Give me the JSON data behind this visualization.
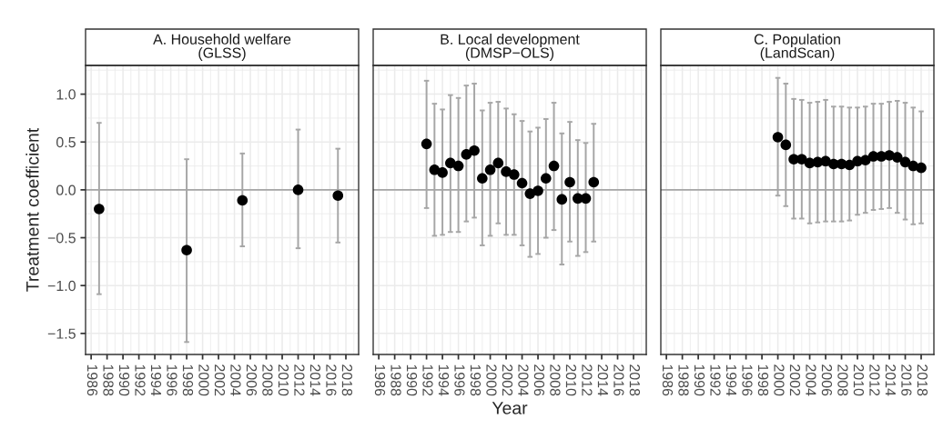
{
  "chart_data": [
    {
      "type": "scatter",
      "title": "A. Household welfare\n(GLSS)",
      "ylabel": "Treatment coefficient",
      "xlim": [
        1985.3,
        2019.6
      ],
      "xticks": [
        1986,
        1988,
        1990,
        1992,
        1994,
        1996,
        1998,
        2000,
        2002,
        2004,
        2006,
        2008,
        2010,
        2012,
        2014,
        2016,
        2018
      ],
      "ylim": [
        -1.72,
        1.3
      ],
      "yticks": [
        -1.5,
        {
          "value": -1,
          "label": "−1.0"
        },
        -0.5,
        {
          "value": 0,
          "label": "0.0"
        },
        0.5,
        {
          "value": 1,
          "label": "1.0"
        }
      ],
      "grid": true,
      "marker": "circle",
      "x": [
        1987,
        1998,
        2005,
        2012,
        2017
      ],
      "series": [
        {
          "color": "#000000",
          "values": [
            -0.2,
            -0.63,
            -0.11,
            0.0,
            -0.06
          ],
          "errors": [
            [
              -1.09,
              0.7
            ],
            [
              -1.59,
              0.32
            ],
            [
              -0.59,
              0.38
            ],
            [
              -0.61,
              0.63
            ],
            [
              -0.55,
              0.43
            ]
          ]
        }
      ],
      "ref_lines": [
        {
          "axis": "y",
          "value": 0,
          "color": "#a6a6a6"
        }
      ]
    },
    {
      "type": "scatter",
      "title": "B. Local development\n(DMSP−OLS)",
      "xlabel": "Year",
      "xlim": [
        1985.3,
        2019.6
      ],
      "xticks": [
        1986,
        1988,
        1990,
        1992,
        1994,
        1996,
        1998,
        2000,
        2002,
        2004,
        2006,
        2008,
        2010,
        2012,
        2014,
        2016,
        2018
      ],
      "ylim": [
        -1.72,
        1.3
      ],
      "yticks": [
        -1.5,
        -1.0,
        -0.5,
        0.0,
        0.5,
        1.0
      ],
      "tick_labels": "x",
      "grid": true,
      "marker": "circle",
      "x": [
        1992,
        1993,
        1994,
        1995,
        1996,
        1997,
        1998,
        1999,
        2000,
        2001,
        2002,
        2003,
        2004,
        2005,
        2006,
        2007,
        2008,
        2009,
        2010,
        2011,
        2012,
        2013
      ],
      "series": [
        {
          "color": "#000000",
          "values": [
            0.48,
            0.21,
            0.18,
            0.28,
            0.25,
            0.37,
            0.41,
            0.12,
            0.21,
            0.28,
            0.19,
            0.16,
            0.07,
            -0.04,
            -0.01,
            0.12,
            0.25,
            -0.1,
            0.08,
            -0.09,
            -0.09,
            0.08
          ],
          "errors": [
            [
              -0.19,
              1.14
            ],
            [
              -0.48,
              0.9
            ],
            [
              -0.47,
              0.84
            ],
            [
              -0.44,
              0.99
            ],
            [
              -0.44,
              0.96
            ],
            [
              -0.33,
              1.09
            ],
            [
              -0.29,
              1.11
            ],
            [
              -0.58,
              0.83
            ],
            [
              -0.48,
              0.91
            ],
            [
              -0.35,
              0.92
            ],
            [
              -0.47,
              0.85
            ],
            [
              -0.47,
              0.79
            ],
            [
              -0.58,
              0.72
            ],
            [
              -0.7,
              0.61
            ],
            [
              -0.67,
              0.65
            ],
            [
              -0.5,
              0.74
            ],
            [
              -0.42,
              0.91
            ],
            [
              -0.78,
              0.59
            ],
            [
              -0.54,
              0.71
            ],
            [
              -0.69,
              0.52
            ],
            [
              -0.65,
              0.49
            ],
            [
              -0.54,
              0.69
            ]
          ]
        }
      ],
      "ref_lines": [
        {
          "axis": "y",
          "value": 0,
          "color": "#a6a6a6"
        }
      ]
    },
    {
      "type": "scatter",
      "title": "C. Population\n(LandScan)",
      "xlim": [
        1985.3,
        2019.6
      ],
      "xticks": [
        1986,
        1988,
        1990,
        1992,
        1994,
        1996,
        1998,
        2000,
        2002,
        2004,
        2006,
        2008,
        2010,
        2012,
        2014,
        2016,
        2018
      ],
      "ylim": [
        -1.72,
        1.3
      ],
      "yticks": [
        -1.5,
        -1.0,
        -0.5,
        0.0,
        0.5,
        1.0
      ],
      "tick_labels": "x",
      "grid": true,
      "marker": "circle",
      "x": [
        2000,
        2001,
        2002,
        2003,
        2004,
        2005,
        2006,
        2007,
        2008,
        2009,
        2010,
        2011,
        2012,
        2013,
        2014,
        2015,
        2016,
        2017,
        2018
      ],
      "series": [
        {
          "color": "#000000",
          "values": [
            0.55,
            0.47,
            0.32,
            0.32,
            0.28,
            0.29,
            0.3,
            0.27,
            0.27,
            0.26,
            0.3,
            0.31,
            0.35,
            0.35,
            0.36,
            0.34,
            0.29,
            0.25,
            0.23
          ],
          "errors": [
            [
              -0.06,
              1.17
            ],
            [
              -0.17,
              1.11
            ],
            [
              -0.3,
              0.95
            ],
            [
              -0.3,
              0.94
            ],
            [
              -0.35,
              0.91
            ],
            [
              -0.34,
              0.92
            ],
            [
              -0.33,
              0.94
            ],
            [
              -0.33,
              0.87
            ],
            [
              -0.33,
              0.87
            ],
            [
              -0.32,
              0.86
            ],
            [
              -0.26,
              0.86
            ],
            [
              -0.24,
              0.87
            ],
            [
              -0.21,
              0.9
            ],
            [
              -0.2,
              0.9
            ],
            [
              -0.19,
              0.92
            ],
            [
              -0.24,
              0.93
            ],
            [
              -0.31,
              0.91
            ],
            [
              -0.36,
              0.86
            ],
            [
              -0.35,
              0.82
            ]
          ]
        }
      ],
      "ref_lines": [
        {
          "axis": "y",
          "value": 0,
          "color": "#a6a6a6"
        }
      ]
    }
  ]
}
